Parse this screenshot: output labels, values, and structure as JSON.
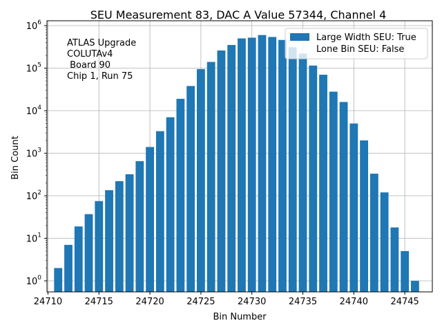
{
  "chart_data": {
    "type": "bar",
    "title": "SEU Measurement 83, DAC A Value 57344, Channel 4",
    "xlabel": "Bin Number",
    "ylabel": "Bin Count",
    "yscale": "log",
    "xlim": [
      24709.9,
      24747.7
    ],
    "ylim": [
      0.55,
      1300000
    ],
    "grid": true,
    "bar_color": "#1f77b4",
    "x_ticks": [
      24710,
      24715,
      24720,
      24725,
      24730,
      24735,
      24740,
      24745
    ],
    "y_ticks": [
      {
        "value": 1,
        "base": "10",
        "exp": "0"
      },
      {
        "value": 10,
        "base": "10",
        "exp": "1"
      },
      {
        "value": 100,
        "base": "10",
        "exp": "2"
      },
      {
        "value": 1000,
        "base": "10",
        "exp": "3"
      },
      {
        "value": 10000,
        "base": "10",
        "exp": "4"
      },
      {
        "value": 100000,
        "base": "10",
        "exp": "5"
      },
      {
        "value": 1000000,
        "base": "10",
        "exp": "6"
      }
    ],
    "bars": [
      {
        "x": 24711,
        "y": 2
      },
      {
        "x": 24712,
        "y": 7
      },
      {
        "x": 24713,
        "y": 19
      },
      {
        "x": 24714,
        "y": 37
      },
      {
        "x": 24715,
        "y": 75
      },
      {
        "x": 24716,
        "y": 135
      },
      {
        "x": 24717,
        "y": 220
      },
      {
        "x": 24718,
        "y": 320
      },
      {
        "x": 24719,
        "y": 650
      },
      {
        "x": 24720,
        "y": 1400
      },
      {
        "x": 24721,
        "y": 3300
      },
      {
        "x": 24722,
        "y": 7000
      },
      {
        "x": 24723,
        "y": 19000
      },
      {
        "x": 24724,
        "y": 38000
      },
      {
        "x": 24725,
        "y": 95000
      },
      {
        "x": 24726,
        "y": 140000
      },
      {
        "x": 24727,
        "y": 260000
      },
      {
        "x": 24728,
        "y": 350000
      },
      {
        "x": 24729,
        "y": 500000
      },
      {
        "x": 24730,
        "y": 520000
      },
      {
        "x": 24731,
        "y": 600000
      },
      {
        "x": 24732,
        "y": 540000
      },
      {
        "x": 24733,
        "y": 460000
      },
      {
        "x": 24734,
        "y": 310000
      },
      {
        "x": 24735,
        "y": 220000
      },
      {
        "x": 24736,
        "y": 115000
      },
      {
        "x": 24737,
        "y": 70000
      },
      {
        "x": 24738,
        "y": 28000
      },
      {
        "x": 24739,
        "y": 16000
      },
      {
        "x": 24740,
        "y": 5000
      },
      {
        "x": 24741,
        "y": 2000
      },
      {
        "x": 24742,
        "y": 330
      },
      {
        "x": 24743,
        "y": 120
      },
      {
        "x": 24744,
        "y": 18
      },
      {
        "x": 24745,
        "y": 5
      },
      {
        "x": 24746,
        "y": 1
      }
    ],
    "legend": {
      "placement": "top-right",
      "entries": [
        "Large Width SEU: True",
        "Lone Bin SEU: False"
      ]
    },
    "annotation": {
      "placement": "top-left",
      "lines": [
        "ATLAS Upgrade",
        "COLUTAv4",
        " Board 90",
        "Chip 1, Run 75"
      ]
    }
  }
}
